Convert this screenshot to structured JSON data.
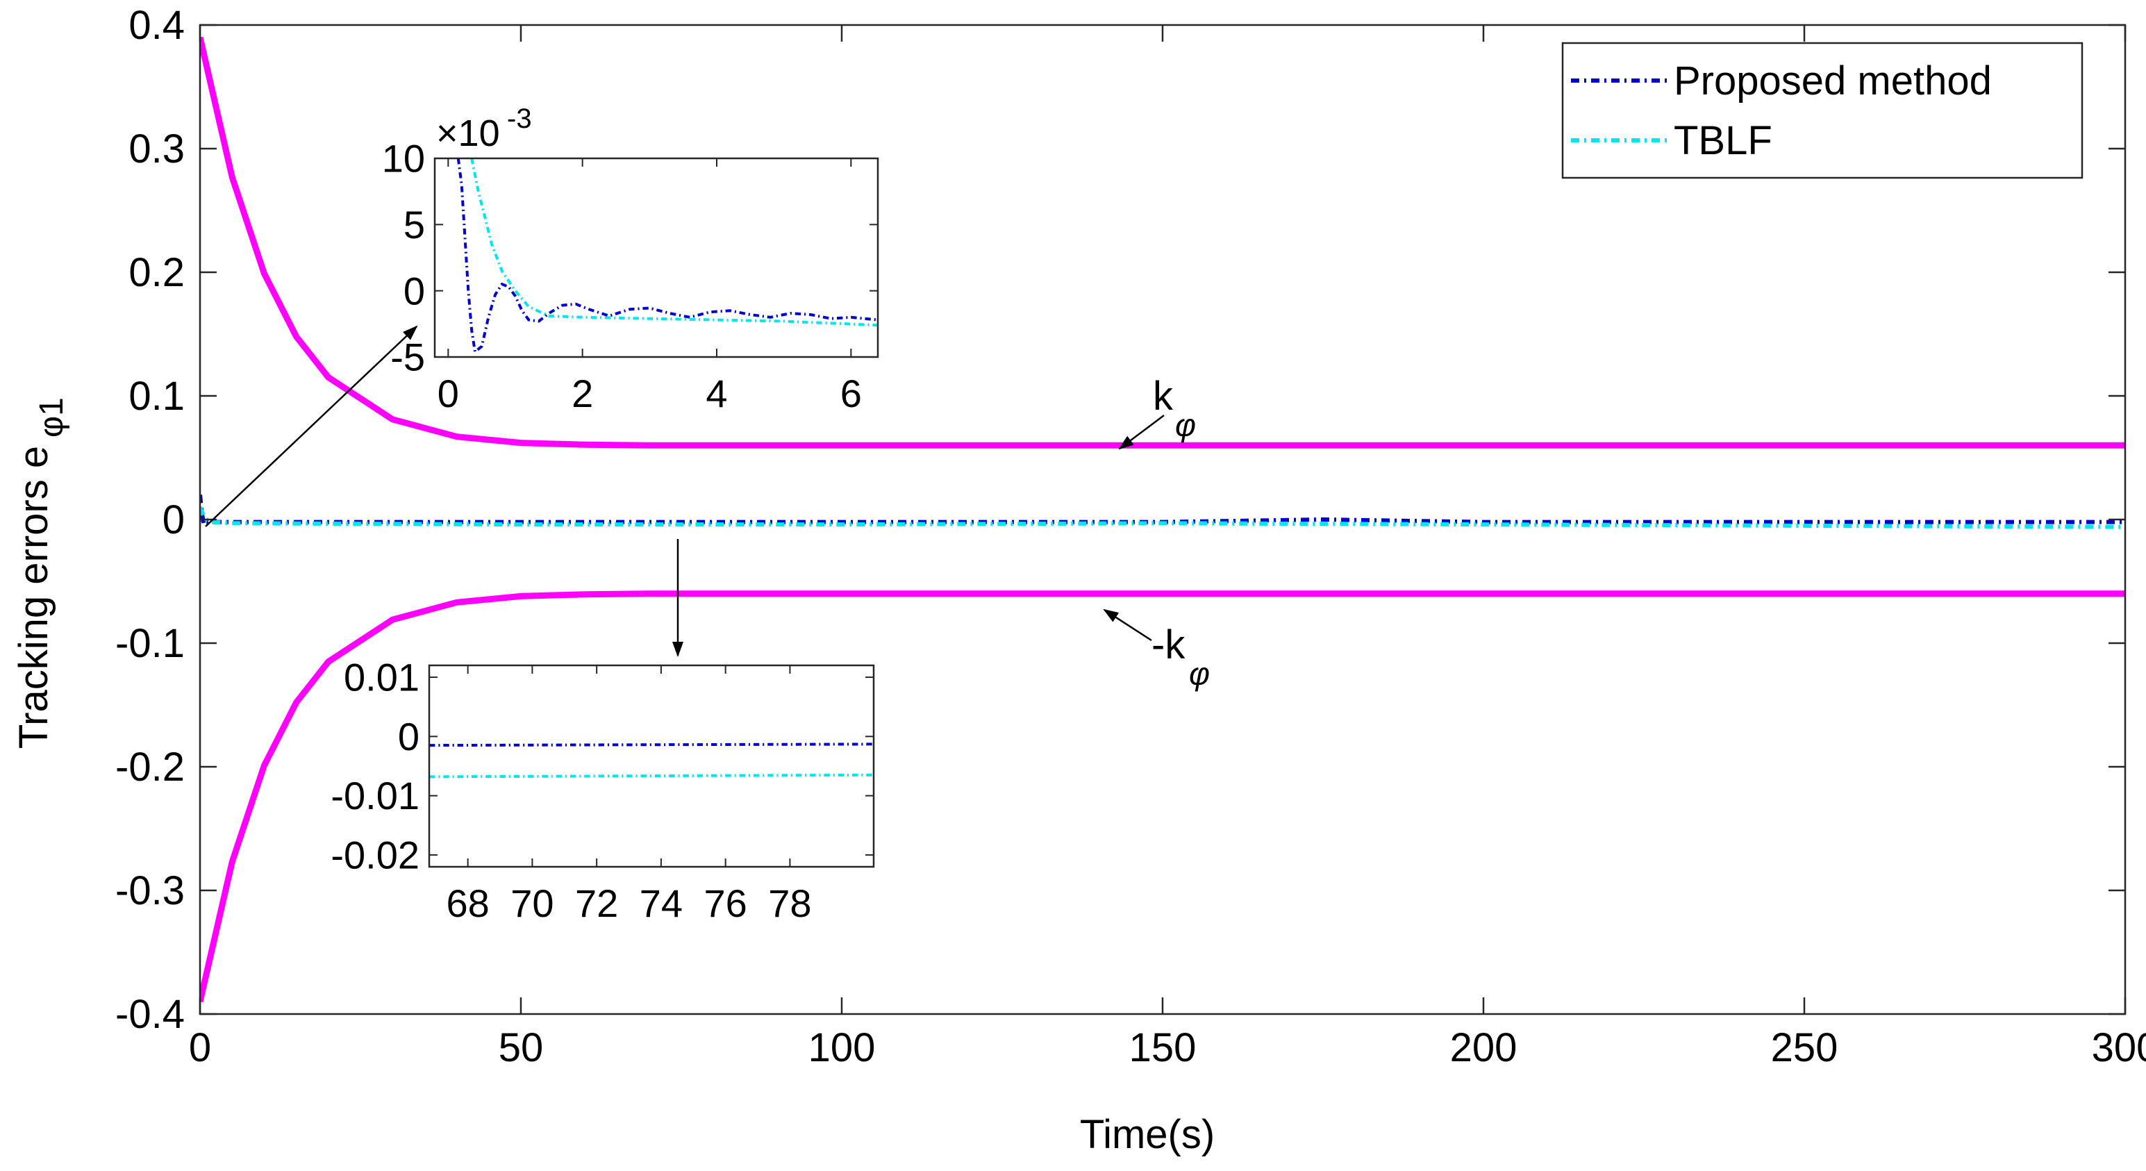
{
  "chart_data": {
    "type": "line",
    "xlabel": "Time(s)",
    "ylabel_main": "Tracking errors e",
    "ylabel_sub": "φ1",
    "xlim": [
      0,
      300
    ],
    "ylim": [
      -0.4,
      0.4
    ],
    "x_ticks": [
      0,
      50,
      100,
      150,
      200,
      250,
      300
    ],
    "x_tick_labels": [
      "0",
      "50",
      "100",
      "150",
      "200",
      "250",
      "300"
    ],
    "y_ticks": [
      -0.4,
      -0.3,
      -0.2,
      -0.1,
      0,
      0.1,
      0.2,
      0.3,
      0.4
    ],
    "y_tick_labels": [
      "-0.4",
      "-0.3",
      "-0.2",
      "-0.1",
      "0",
      "0.1",
      "0.2",
      "0.3",
      "0.4"
    ],
    "legend": {
      "position": "top-right",
      "entries": [
        {
          "label": "Proposed method",
          "color": "#0000cd",
          "style": "dash-dot"
        },
        {
          "label": "TBLF",
          "color": "#00e5ee",
          "style": "dash-dot"
        }
      ]
    },
    "series": [
      {
        "name": "k_phi (upper bound)",
        "color": "#ff00ff",
        "style": "solid",
        "x": [
          0,
          5,
          10,
          15,
          20,
          30,
          40,
          50,
          60,
          70,
          100,
          150,
          200,
          250,
          300
        ],
        "values": [
          0.39,
          0.277,
          0.199,
          0.148,
          0.115,
          0.081,
          0.067,
          0.062,
          0.0605,
          0.06,
          0.06,
          0.06,
          0.06,
          0.06,
          0.06
        ]
      },
      {
        "name": "-k_phi (lower bound)",
        "color": "#ff00ff",
        "style": "solid",
        "x": [
          0,
          5,
          10,
          15,
          20,
          30,
          40,
          50,
          60,
          70,
          100,
          150,
          200,
          250,
          300
        ],
        "values": [
          -0.39,
          -0.277,
          -0.199,
          -0.148,
          -0.115,
          -0.081,
          -0.067,
          -0.062,
          -0.0605,
          -0.06,
          -0.06,
          -0.06,
          -0.06,
          -0.06,
          -0.06
        ]
      },
      {
        "name": "Proposed method",
        "color": "#0000cd",
        "style": "dash-dot",
        "x": [
          0,
          0.3,
          0.6,
          1,
          2,
          5,
          50,
          100,
          150,
          175,
          200,
          250,
          300
        ],
        "values": [
          0.02,
          0.005,
          -0.004,
          -0.002,
          -0.002,
          -0.002,
          -0.002,
          -0.002,
          -0.002,
          0.0,
          -0.002,
          -0.002,
          -0.002
        ]
      },
      {
        "name": "TBLF",
        "color": "#00e5ee",
        "style": "dash-dot",
        "x": [
          0,
          0.5,
          1,
          2,
          5,
          50,
          100,
          150,
          200,
          250,
          300
        ],
        "values": [
          0.01,
          0.004,
          0.0,
          -0.002,
          -0.003,
          -0.004,
          -0.004,
          -0.003,
          -0.004,
          -0.005,
          -0.006
        ]
      }
    ],
    "annotations": [
      {
        "main": "k",
        "sub": "φ"
      },
      {
        "main": "-k",
        "sub": "φ"
      }
    ],
    "insets": [
      {
        "name": "inset-early",
        "xlim": [
          -0.2,
          6.4
        ],
        "ylim": [
          -5,
          10
        ],
        "y_scale_label": "×10",
        "y_scale_exponent": "-3",
        "x_ticks": [
          0,
          2,
          4,
          6
        ],
        "x_tick_labels": [
          "0",
          "2",
          "4",
          "6"
        ],
        "y_ticks": [
          -5,
          0,
          5,
          10
        ],
        "y_tick_labels": [
          "-5",
          "0",
          "5",
          "10"
        ],
        "series": [
          {
            "name": "Proposed method",
            "color": "#0000cd",
            "style": "dash-dot",
            "x": [
              0.15,
              0.2,
              0.25,
              0.3,
              0.35,
              0.4,
              0.5,
              0.6,
              0.7,
              0.8,
              0.9,
              1.0,
              1.1,
              1.2,
              1.35,
              1.5,
              1.7,
              1.9,
              2.1,
              2.4,
              2.7,
              3.0,
              3.3,
              3.6,
              3.9,
              4.2,
              4.5,
              4.8,
              5.1,
              5.4,
              5.7,
              6.0,
              6.4
            ],
            "values": [
              10,
              8,
              4,
              0,
              -3,
              -4.6,
              -4.2,
              -2,
              -0.3,
              0.5,
              0.3,
              -0.4,
              -1.5,
              -2.2,
              -2.3,
              -1.7,
              -1.1,
              -1.0,
              -1.4,
              -1.9,
              -1.4,
              -1.3,
              -1.7,
              -2.0,
              -1.6,
              -1.5,
              -1.8,
              -2.0,
              -1.7,
              -1.8,
              -2.1,
              -2.0,
              -2.2
            ]
          },
          {
            "name": "TBLF",
            "color": "#00e5ee",
            "style": "dash-dot",
            "x": [
              0.35,
              0.45,
              0.55,
              0.65,
              0.8,
              1.0,
              1.2,
              1.5,
              2.0,
              3.0,
              4.0,
              5.0,
              6.4
            ],
            "values": [
              10,
              7.5,
              5.5,
              3.5,
              1.5,
              0.0,
              -1.2,
              -1.9,
              -2.0,
              -2.1,
              -2.2,
              -2.3,
              -2.6
            ]
          }
        ]
      },
      {
        "name": "inset-late",
        "xlim": [
          66.8,
          80.6
        ],
        "ylim": [
          -0.022,
          0.012
        ],
        "x_ticks": [
          68,
          70,
          72,
          74,
          76,
          78
        ],
        "x_tick_labels": [
          "68",
          "70",
          "72",
          "74",
          "76",
          "78"
        ],
        "y_ticks": [
          -0.02,
          -0.01,
          0,
          0.01
        ],
        "y_tick_labels": [
          "-0.02",
          "-0.01",
          "0",
          "0.01"
        ],
        "series": [
          {
            "name": "Proposed method",
            "color": "#0000cd",
            "style": "dash-dot",
            "x": [
              66.8,
              80.6
            ],
            "values": [
              -0.0015,
              -0.0013
            ]
          },
          {
            "name": "TBLF",
            "color": "#00e5ee",
            "style": "dash-dot",
            "x": [
              66.8,
              80.6
            ],
            "values": [
              -0.0068,
              -0.0065
            ]
          }
        ]
      }
    ]
  }
}
